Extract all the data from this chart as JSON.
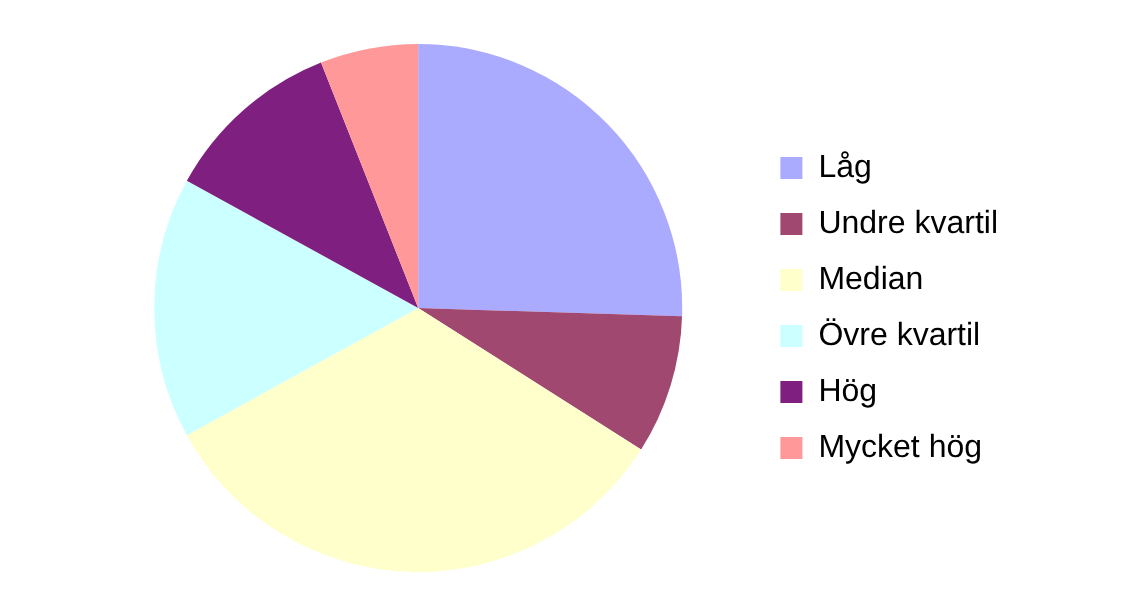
{
  "chart_data": {
    "type": "pie",
    "categories": [
      "Låg",
      "Undre kvartil",
      "Median",
      "Övre kvartil",
      "Hög",
      "Mycket hög"
    ],
    "values": [
      25.5,
      8.5,
      33,
      16,
      11,
      6
    ],
    "colors": [
      "#aaaaff",
      "#a04870",
      "#ffffcc",
      "#ccffff",
      "#7f1f7f",
      "#ff9999"
    ],
    "legend": "right"
  }
}
